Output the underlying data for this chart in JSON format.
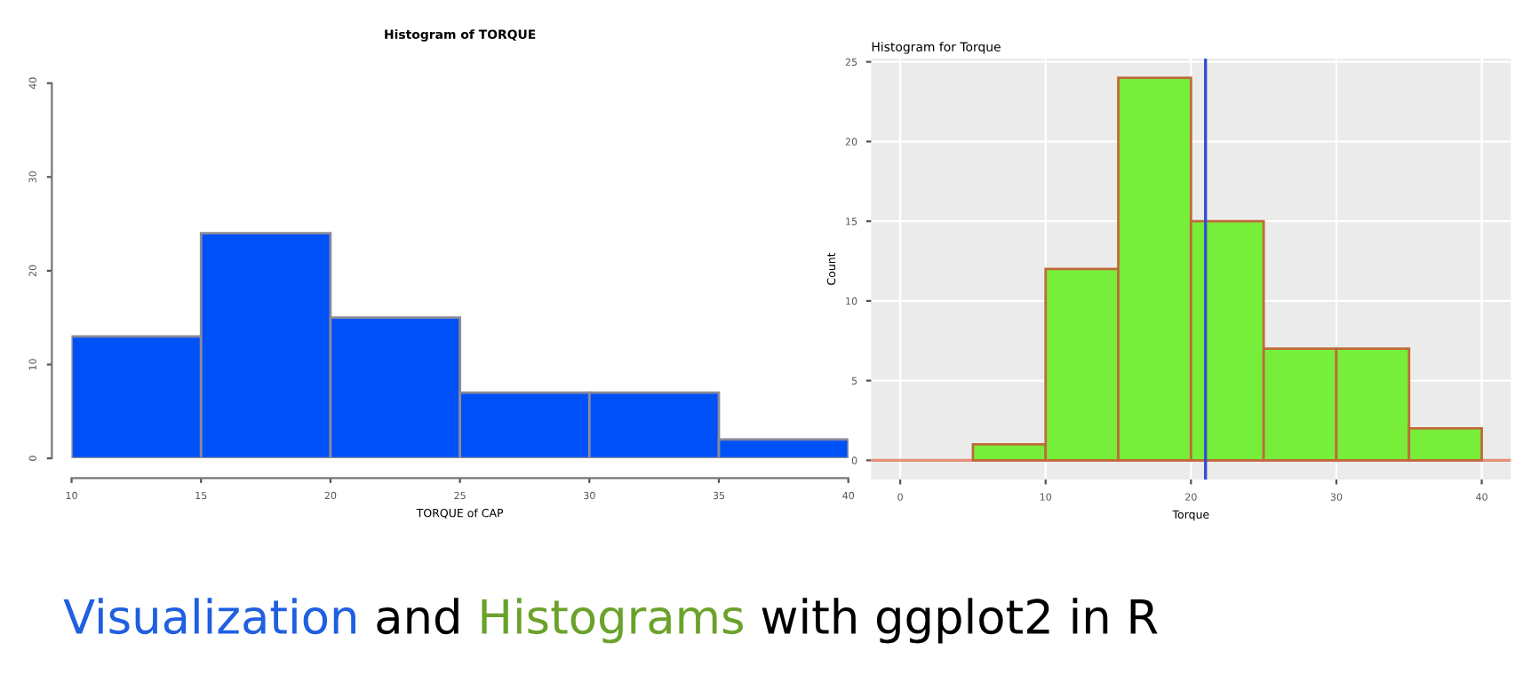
{
  "chart_data": [
    {
      "type": "histogram",
      "title": "Histogram of TORQUE",
      "xlabel": "TORQUE of CAP",
      "bins": [
        10,
        15,
        20,
        25,
        30,
        35,
        40
      ],
      "values": [
        13,
        24,
        15,
        7,
        7,
        2
      ],
      "color": "#0050f8",
      "xlim": [
        10,
        40
      ],
      "xticks": [
        10,
        15,
        20,
        25,
        30,
        35,
        40
      ],
      "ylim": [
        0,
        40
      ],
      "yticks": [
        0,
        10,
        20,
        30,
        40
      ],
      "grid": false,
      "annotations": [
        "Visualization and Histograms with ggplot2 in R"
      ]
    },
    {
      "type": "histogram",
      "title": "Histogram for Torque",
      "xlabel": "Torque",
      "ylabel": "Count",
      "bins": [
        5,
        10,
        15,
        20,
        25,
        30,
        35,
        40
      ],
      "values": [
        1,
        12,
        24,
        15,
        7,
        7,
        2
      ],
      "color": "#77ee3a",
      "xlim": [
        -2,
        42
      ],
      "xticks": [
        0,
        10,
        20,
        30,
        40
      ],
      "ylim": [
        -1.2,
        25.2
      ],
      "yticks": [
        0,
        5,
        10,
        15,
        20,
        25
      ],
      "grid": true,
      "ref_lines": [
        {
          "axis": "y",
          "value": 0,
          "color": "#e8907a"
        },
        {
          "axis": "x",
          "value": 21,
          "color": "#3050d0"
        }
      ]
    }
  ]
}
